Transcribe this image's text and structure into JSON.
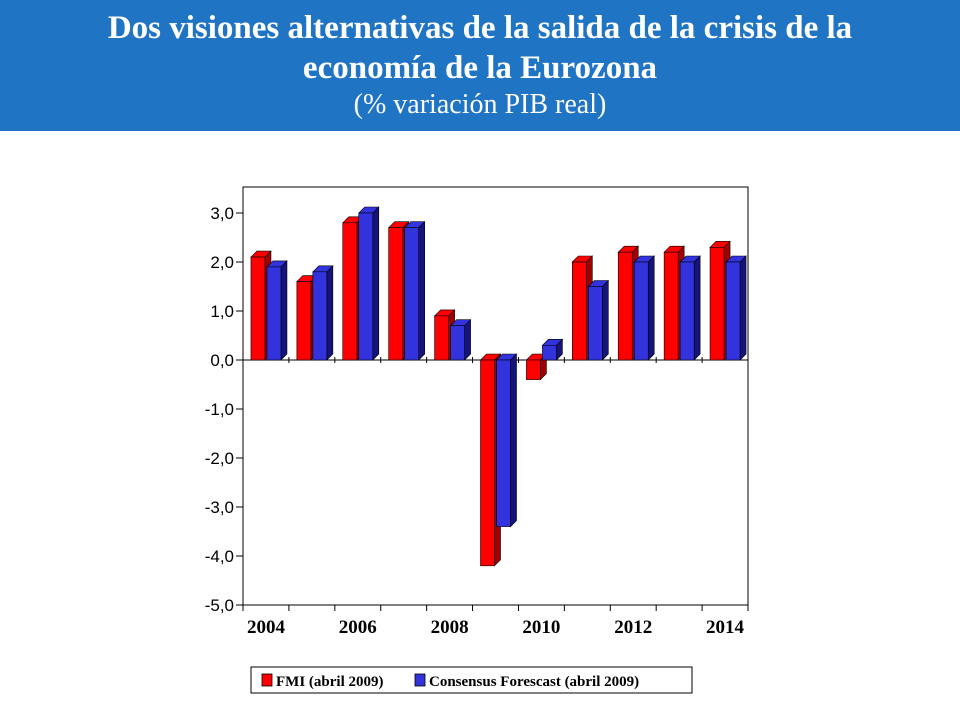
{
  "header": {
    "title_line1": "Dos visiones alternativas de la salida de la crisis de la",
    "title_line2": "economía de la Eurozona",
    "subtitle": "(% variación PIB real)"
  },
  "colors": {
    "banner": "#1f74c4",
    "series_fmi": "#ff0000",
    "series_fmi_side": "#a00000",
    "series_consensus": "#3333dd",
    "series_consensus_side": "#14147a"
  },
  "chart_data": {
    "type": "bar",
    "title": "Dos visiones alternativas de la salida de la crisis de la economía de la Eurozona",
    "subtitle": "(% variación PIB real)",
    "categories": [
      "2004",
      "2005",
      "2006",
      "2007",
      "2008",
      "2009",
      "2010",
      "2011",
      "2012",
      "2013",
      "2014"
    ],
    "x_tick_labels": [
      "2004",
      "2006",
      "2008",
      "2010",
      "2012",
      "2014"
    ],
    "series": [
      {
        "name": "FMI (abril 2009)",
        "values": [
          2.1,
          1.6,
          2.8,
          2.7,
          0.9,
          -4.2,
          -0.4,
          2.0,
          2.2,
          2.2,
          2.3
        ]
      },
      {
        "name": "Consensus Forescast (abril 2009)",
        "values": [
          1.9,
          1.8,
          3.0,
          2.7,
          0.7,
          -3.4,
          0.3,
          1.5,
          2.0,
          2.0,
          2.0
        ]
      }
    ],
    "ylim": [
      -5.0,
      3.5
    ],
    "y_ticks": [
      "3,0",
      "2,0",
      "1,0",
      "0,0",
      "-1,0",
      "-2,0",
      "-3,0",
      "-4,0",
      "-5,0"
    ],
    "legend_position": "bottom",
    "grid": false,
    "style": "3d-bar"
  }
}
